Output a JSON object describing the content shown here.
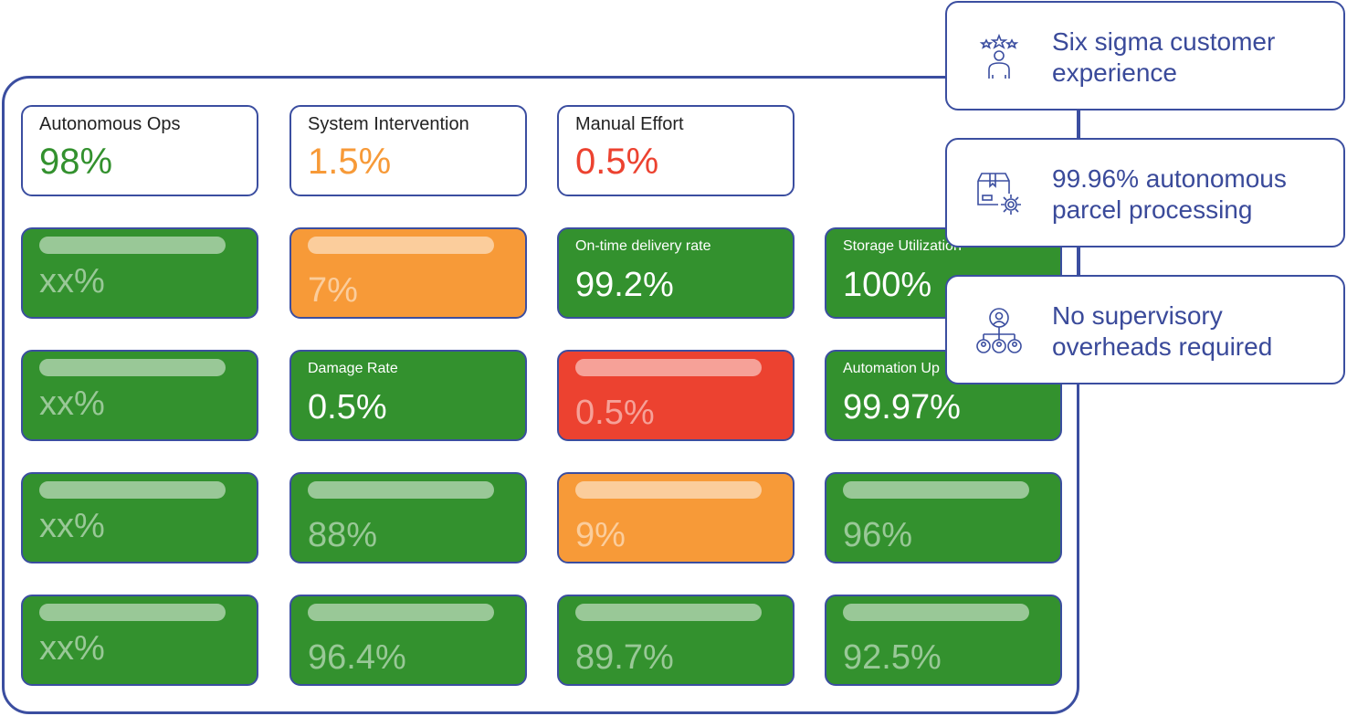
{
  "colors": {
    "border": "#3b4ea0",
    "green": "#33912e",
    "orange": "#f79a38",
    "red": "#ec4230",
    "feature_text": "#3a4a9a"
  },
  "summary": [
    {
      "label": "Autonomous Ops",
      "value": "98%",
      "color": "#33912e"
    },
    {
      "label": "System Intervention",
      "value": "1.5%",
      "color": "#f79a38"
    },
    {
      "label": "Manual Effort",
      "value": "0.5%",
      "color": "#ec4230"
    }
  ],
  "tiles": [
    {
      "status": "green",
      "label": "",
      "value": "xx%",
      "blurred": true
    },
    {
      "status": "orange",
      "label": "",
      "value": "7%",
      "blurred": true
    },
    {
      "status": "green",
      "label": "On-time delivery rate",
      "value": "99.2%",
      "blurred": false
    },
    {
      "status": "green",
      "label": "Storage Utilization",
      "value": "100%",
      "blurred": false
    },
    {
      "status": "green",
      "label": "",
      "value": "xx%",
      "blurred": true
    },
    {
      "status": "green",
      "label": "Damage Rate",
      "value": "0.5%",
      "blurred": false
    },
    {
      "status": "red",
      "label": "",
      "value": "0.5%",
      "blurred": true
    },
    {
      "status": "green",
      "label": "Automation Up",
      "value": "99.97%",
      "blurred": false
    },
    {
      "status": "green",
      "label": "",
      "value": "xx%",
      "blurred": true
    },
    {
      "status": "green",
      "label": "",
      "value": "88%",
      "blurred": true
    },
    {
      "status": "orange",
      "label": "",
      "value": "9%",
      "blurred": true
    },
    {
      "status": "green",
      "label": "",
      "value": "96%",
      "blurred": true
    },
    {
      "status": "green",
      "label": "",
      "value": "xx%",
      "blurred": true
    },
    {
      "status": "green",
      "label": "",
      "value": "96.4%",
      "blurred": true
    },
    {
      "status": "green",
      "label": "",
      "value": "89.7%",
      "blurred": true
    },
    {
      "status": "green",
      "label": "",
      "value": "92.5%",
      "blurred": true
    }
  ],
  "features": [
    {
      "icon": "customer-stars-icon",
      "text": "Six sigma customer experience"
    },
    {
      "icon": "parcel-gear-icon",
      "text": "99.96% autonomous parcel processing"
    },
    {
      "icon": "org-hierarchy-icon",
      "text": "No supervisory overheads required"
    }
  ]
}
